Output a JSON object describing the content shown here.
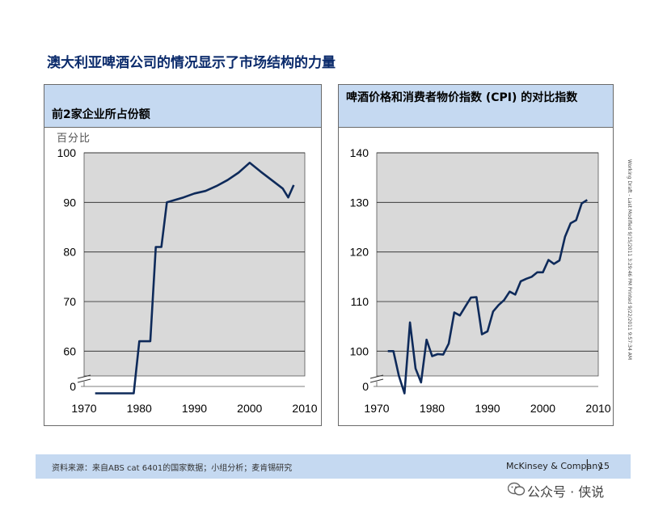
{
  "page_title": "澳大利亚啤酒公司的情况显示了市场结构的力量",
  "side_note": "Working Draft - Last Modified 9/15/2011 3:29:46 PM     Printed 9/22/2011 9:57:34 AM",
  "footer": {
    "source": "资料来源：来自ABS cat 6401的国家数据；小组分析；麦肯锡研究",
    "brand": "McKinsey & Company",
    "separator": "|",
    "page": "15"
  },
  "watermark": "公众号 · 侠说",
  "colors": {
    "line": "#0e2a5a",
    "plot_bg": "#d9d9d9",
    "header_bg": "#c5d9f1",
    "title": "#0a2a6b"
  },
  "chart_data": [
    {
      "type": "line",
      "title": "前2家企业所占份额",
      "unit_label": "百分比",
      "xlim": [
        1970,
        2010
      ],
      "x_ticks": [
        1970,
        1980,
        1990,
        2000,
        2010
      ],
      "y_ticks": [
        100,
        90,
        80,
        70,
        60
      ],
      "axis_break_label": "0",
      "ylim": [
        55,
        100
      ],
      "grid": true,
      "series": [
        {
          "points": [
            [
              1972,
              51.5
            ],
            [
              1979,
              51.5
            ],
            [
              1980,
              62
            ],
            [
              1982,
              62
            ],
            [
              1983,
              81
            ],
            [
              1984,
              81
            ],
            [
              1985,
              90
            ],
            [
              1988,
              91
            ],
            [
              1990,
              91.8
            ],
            [
              1992,
              92.3
            ],
            [
              1994,
              93.3
            ],
            [
              1996,
              94.5
            ],
            [
              1998,
              96
            ],
            [
              2000,
              98
            ],
            [
              2002,
              96.2
            ],
            [
              2004,
              94.5
            ],
            [
              2006,
              92.8
            ],
            [
              2007,
              91
            ],
            [
              2008,
              93.5
            ]
          ]
        }
      ]
    },
    {
      "type": "line",
      "title": "啤酒价格和消费者物价指数 (CPI) 的对比指数",
      "unit_label": "",
      "xlim": [
        1970,
        2010
      ],
      "x_ticks": [
        1970,
        1980,
        1990,
        2000,
        2010
      ],
      "y_ticks": [
        140,
        130,
        120,
        110,
        100
      ],
      "axis_break_label": "0",
      "ylim": [
        95,
        140
      ],
      "grid": true,
      "series": [
        {
          "points": [
            [
              1972,
              100
            ],
            [
              1973,
              100
            ],
            [
              1974,
              95
            ],
            [
              1975,
              91.5
            ],
            [
              1976,
              105.8
            ],
            [
              1977,
              96.5
            ],
            [
              1978,
              93.7
            ],
            [
              1979,
              102.3
            ],
            [
              1980,
              99
            ],
            [
              1981,
              99.4
            ],
            [
              1982,
              99.3
            ],
            [
              1983,
              101.5
            ],
            [
              1984,
              107.8
            ],
            [
              1985,
              107.2
            ],
            [
              1986,
              109
            ],
            [
              1987,
              110.8
            ],
            [
              1988,
              110.9
            ],
            [
              1989,
              103.4
            ],
            [
              1990,
              104
            ],
            [
              1991,
              108
            ],
            [
              1992,
              109.3
            ],
            [
              1993,
              110.3
            ],
            [
              1994,
              112
            ],
            [
              1995,
              111.4
            ],
            [
              1996,
              114.1
            ],
            [
              1997,
              114.6
            ],
            [
              1998,
              115
            ],
            [
              1999,
              115.9
            ],
            [
              2000,
              115.9
            ],
            [
              2001,
              118.4
            ],
            [
              2002,
              117.6
            ],
            [
              2003,
              118.3
            ],
            [
              2004,
              123.1
            ],
            [
              2005,
              125.8
            ],
            [
              2006,
              126.4
            ],
            [
              2007,
              129.8
            ],
            [
              2008,
              130.5
            ]
          ]
        }
      ]
    }
  ]
}
